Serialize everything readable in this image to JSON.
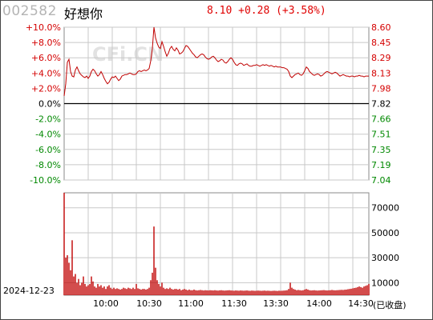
{
  "header": {
    "code": "002582",
    "name": "好想你",
    "quote": "8.10 +0.28 (+3.58%)"
  },
  "watermark": "CFi.CN",
  "date_label": "2024-12-23",
  "volume_unit": "(已收盘)",
  "colors": {
    "up": "#d40000",
    "down": "#008800",
    "neutral": "#000000",
    "line": "#c00000",
    "volume": "#c00000",
    "grid": "#c8c8c8",
    "watermark": "#e2e2e2"
  },
  "chart_data": [
    {
      "type": "line",
      "name": "intraday-price",
      "y_left_ticks": [
        "+10.0%",
        "+8.0%",
        "+6.0%",
        "+4.0%",
        "+2.0%",
        "0.0%",
        "-2.0%",
        "-4.0%",
        "-6.0%",
        "-8.0%",
        "-10.0%"
      ],
      "y_right_ticks": [
        "8.60",
        "8.45",
        "8.29",
        "8.13",
        "7.98",
        "7.82",
        "7.66",
        "7.51",
        "7.35",
        "7.19",
        "7.04"
      ],
      "x_ticks": [
        "10:00",
        "10:30",
        "11:00",
        "11:30",
        "13:30",
        "14:00",
        "14:30"
      ],
      "ylim_pct": [
        -10,
        10
      ],
      "prev_close": 7.82,
      "grid": true,
      "points": [
        [
          0,
          1.0
        ],
        [
          1,
          2.6
        ],
        [
          2,
          5.4
        ],
        [
          3,
          5.8
        ],
        [
          4,
          4.2
        ],
        [
          5,
          3.6
        ],
        [
          6,
          3.5
        ],
        [
          7,
          4.4
        ],
        [
          8,
          4.8
        ],
        [
          9,
          4.3
        ],
        [
          10,
          3.9
        ],
        [
          11,
          3.7
        ],
        [
          12,
          3.5
        ],
        [
          13,
          3.4
        ],
        [
          14,
          3.6
        ],
        [
          15,
          3.3
        ],
        [
          16,
          3.6
        ],
        [
          17,
          4.2
        ],
        [
          18,
          4.5
        ],
        [
          19,
          4.3
        ],
        [
          20,
          3.9
        ],
        [
          21,
          3.6
        ],
        [
          22,
          3.8
        ],
        [
          23,
          4.2
        ],
        [
          24,
          3.8
        ],
        [
          25,
          3.3
        ],
        [
          26,
          2.9
        ],
        [
          27,
          2.6
        ],
        [
          28,
          2.8
        ],
        [
          29,
          3.2
        ],
        [
          30,
          3.5
        ],
        [
          31,
          3.4
        ],
        [
          32,
          3.6
        ],
        [
          33,
          3.3
        ],
        [
          34,
          3.0
        ],
        [
          35,
          3.2
        ],
        [
          36,
          3.6
        ],
        [
          37,
          3.7
        ],
        [
          38,
          3.8
        ],
        [
          39,
          3.8
        ],
        [
          40,
          3.9
        ],
        [
          41,
          4.0
        ],
        [
          42,
          3.9
        ],
        [
          43,
          3.8
        ],
        [
          44,
          3.8
        ],
        [
          45,
          3.9
        ],
        [
          46,
          4.2
        ],
        [
          47,
          4.3
        ],
        [
          48,
          4.2
        ],
        [
          49,
          4.3
        ],
        [
          50,
          4.4
        ],
        [
          51,
          4.3
        ],
        [
          52,
          4.4
        ],
        [
          53,
          4.6
        ],
        [
          54,
          5.6
        ],
        [
          55,
          7.2
        ],
        [
          56,
          10.0
        ],
        [
          57,
          8.6
        ],
        [
          58,
          7.9
        ],
        [
          59,
          7.4
        ],
        [
          60,
          7.2
        ],
        [
          61,
          8.1
        ],
        [
          62,
          7.5
        ],
        [
          63,
          6.8
        ],
        [
          64,
          6.2
        ],
        [
          65,
          6.6
        ],
        [
          66,
          7.2
        ],
        [
          67,
          7.5
        ],
        [
          68,
          7.1
        ],
        [
          69,
          6.9
        ],
        [
          70,
          7.3
        ],
        [
          71,
          7.0
        ],
        [
          72,
          6.5
        ],
        [
          73,
          6.6
        ],
        [
          74,
          6.8
        ],
        [
          75,
          7.2
        ],
        [
          76,
          7.6
        ],
        [
          77,
          7.5
        ],
        [
          78,
          7.2
        ],
        [
          79,
          6.9
        ],
        [
          80,
          6.6
        ],
        [
          81,
          6.4
        ],
        [
          82,
          6.1
        ],
        [
          83,
          6.0
        ],
        [
          84,
          6.2
        ],
        [
          85,
          6.4
        ],
        [
          86,
          6.5
        ],
        [
          87,
          6.4
        ],
        [
          88,
          6.1
        ],
        [
          89,
          5.9
        ],
        [
          90,
          5.8
        ],
        [
          91,
          5.9
        ],
        [
          92,
          6.1
        ],
        [
          93,
          6.2
        ],
        [
          94,
          6.0
        ],
        [
          95,
          5.7
        ],
        [
          96,
          5.5
        ],
        [
          97,
          5.6
        ],
        [
          98,
          5.8
        ],
        [
          99,
          5.7
        ],
        [
          100,
          5.4
        ],
        [
          101,
          5.3
        ],
        [
          102,
          5.5
        ],
        [
          103,
          5.8
        ],
        [
          104,
          6.0
        ],
        [
          105,
          5.8
        ],
        [
          106,
          5.4
        ],
        [
          107,
          5.1
        ],
        [
          108,
          5.0
        ],
        [
          109,
          5.2
        ],
        [
          110,
          5.3
        ],
        [
          111,
          5.2
        ],
        [
          112,
          5.0
        ],
        [
          113,
          5.1
        ],
        [
          114,
          5.2
        ],
        [
          115,
          5.0
        ],
        [
          116,
          4.9
        ],
        [
          117,
          4.9
        ],
        [
          118,
          5.0
        ],
        [
          119,
          5.0
        ],
        [
          120,
          5.1
        ],
        [
          121,
          5.0
        ],
        [
          122,
          4.9
        ],
        [
          123,
          5.0
        ],
        [
          124,
          5.1
        ],
        [
          125,
          5.0
        ],
        [
          126,
          5.1
        ],
        [
          127,
          5.0
        ],
        [
          128,
          4.9
        ],
        [
          129,
          5.0
        ],
        [
          130,
          4.9
        ],
        [
          131,
          4.8
        ],
        [
          132,
          4.9
        ],
        [
          133,
          4.8
        ],
        [
          134,
          4.8
        ],
        [
          135,
          4.8
        ],
        [
          136,
          4.7
        ],
        [
          137,
          4.7
        ],
        [
          138,
          4.6
        ],
        [
          139,
          4.5
        ],
        [
          140,
          4.2
        ],
        [
          141,
          3.6
        ],
        [
          142,
          3.4
        ],
        [
          143,
          3.6
        ],
        [
          144,
          3.8
        ],
        [
          145,
          3.9
        ],
        [
          146,
          4.0
        ],
        [
          147,
          3.8
        ],
        [
          148,
          3.7
        ],
        [
          149,
          3.9
        ],
        [
          150,
          4.3
        ],
        [
          151,
          4.8
        ],
        [
          152,
          4.6
        ],
        [
          153,
          4.2
        ],
        [
          154,
          4.0
        ],
        [
          155,
          3.8
        ],
        [
          156,
          3.7
        ],
        [
          157,
          3.8
        ],
        [
          158,
          3.9
        ],
        [
          159,
          3.8
        ],
        [
          160,
          3.6
        ],
        [
          161,
          3.7
        ],
        [
          162,
          3.9
        ],
        [
          163,
          4.1
        ],
        [
          164,
          4.2
        ],
        [
          165,
          4.1
        ],
        [
          166,
          4.0
        ],
        [
          167,
          3.9
        ],
        [
          168,
          4.0
        ],
        [
          169,
          4.1
        ],
        [
          170,
          4.0
        ],
        [
          171,
          3.8
        ],
        [
          172,
          3.6
        ],
        [
          173,
          3.7
        ],
        [
          174,
          3.8
        ],
        [
          175,
          3.7
        ],
        [
          176,
          3.6
        ],
        [
          177,
          3.6
        ],
        [
          178,
          3.5
        ],
        [
          179,
          3.6
        ],
        [
          180,
          3.6
        ],
        [
          181,
          3.5
        ],
        [
          182,
          3.6
        ],
        [
          183,
          3.6
        ],
        [
          184,
          3.7
        ],
        [
          185,
          3.6
        ],
        [
          186,
          3.6
        ],
        [
          187,
          3.5
        ],
        [
          188,
          3.6
        ],
        [
          189,
          3.6
        ],
        [
          190,
          3.6
        ]
      ]
    },
    {
      "type": "bar",
      "name": "intraday-volume",
      "y_ticks": [
        "70000",
        "50000",
        "30000",
        "10000"
      ],
      "ylim": [
        0,
        82000
      ],
      "values": [
        82000,
        30000,
        32000,
        26000,
        20000,
        44000,
        15000,
        17000,
        10000,
        13000,
        8000,
        10000,
        15000,
        9000,
        7000,
        8000,
        9000,
        15000,
        11000,
        7000,
        6000,
        9000,
        7000,
        8000,
        6000,
        7000,
        5000,
        7000,
        8000,
        6000,
        5000,
        6000,
        5000,
        5500,
        5000,
        4500,
        5000,
        6000,
        5500,
        5000,
        6000,
        5500,
        5000,
        6000,
        5000,
        9000,
        5500,
        5000,
        4500,
        5000,
        5000,
        4500,
        5000,
        6000,
        12000,
        18000,
        55000,
        22000,
        12000,
        9000,
        7000,
        10000,
        6000,
        5000,
        5500,
        5000,
        6000,
        5000,
        4500,
        5000,
        5000,
        4500,
        5000,
        4000,
        4500,
        5000,
        4500,
        4000,
        4500,
        4000,
        4000,
        4500,
        4000,
        3800,
        4000,
        4200,
        4000,
        3800,
        4000,
        3900,
        3800,
        4000,
        3900,
        3800,
        4000,
        3800,
        3700,
        3900,
        4000,
        3800,
        3700,
        3800,
        3900,
        4000,
        3800,
        3700,
        3600,
        3800,
        3700,
        3600,
        3800,
        3700,
        3600,
        3700,
        3800,
        3600,
        3500,
        3700,
        3600,
        3500,
        3600,
        3700,
        3600,
        3500,
        3600,
        3700,
        3500,
        3600,
        3500,
        3400,
        3500,
        3600,
        3500,
        3400,
        3600,
        3500,
        3600,
        3700,
        3800,
        4000,
        5000,
        10000,
        6000,
        5000,
        4500,
        4000,
        4200,
        4000,
        3800,
        4000,
        4500,
        5000,
        4500,
        4000,
        3800,
        3900,
        4000,
        3800,
        3700,
        3800,
        3900,
        4000,
        4100,
        3900,
        3800,
        3900,
        4000,
        4200,
        4000,
        3900,
        4000,
        4100,
        4200,
        4300,
        4200,
        4400,
        4500,
        4800,
        5000,
        5200,
        5500,
        5800,
        6000,
        6500,
        7000,
        6500,
        6000,
        7000,
        7500,
        8000,
        9000
      ]
    }
  ]
}
